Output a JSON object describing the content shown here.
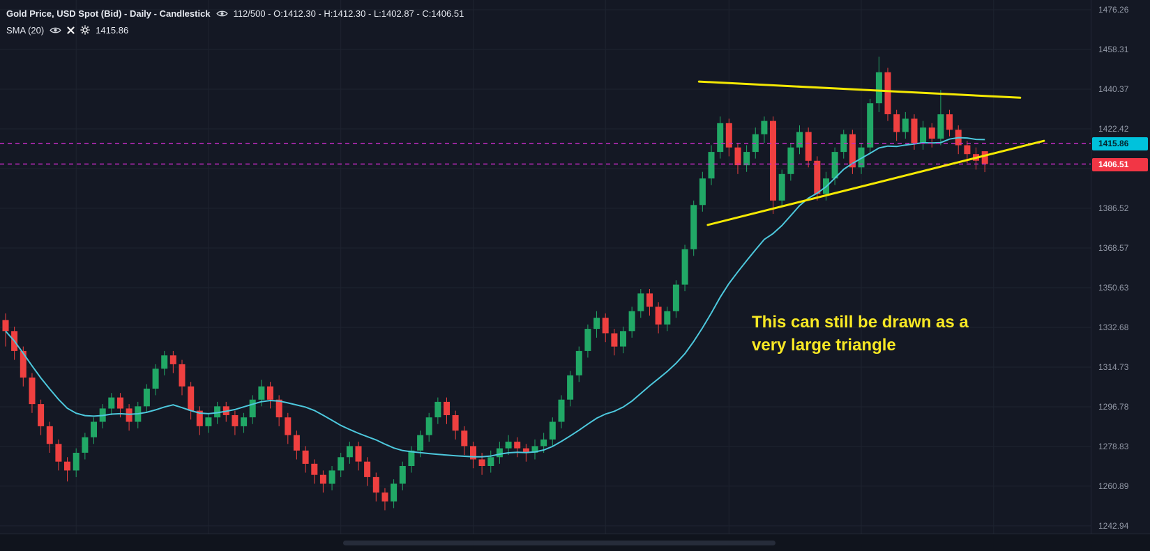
{
  "colors": {
    "background": "#141824",
    "grid": "#1e2330",
    "axis_text": "#949aa8",
    "candle_up": "#21a866",
    "candle_down": "#ef4040",
    "sma": "#4dc8dd",
    "legend_text": "#e6e9f0",
    "trendline_yellow": "#f5e903",
    "price_line_magenta": "#c42bc4"
  },
  "header": {
    "title": "Gold Price, USD Spot (Bid) - Daily - Candlestick",
    "bar_info": "112/500 - O:1412.30 - H:1412.30 - L:1402.87 - C:1406.51",
    "indicator": {
      "label": "SMA (20)",
      "value": "1415.86"
    }
  },
  "price_axis": {
    "ticks": [
      {
        "label": "1476.26",
        "value": 1476.26
      },
      {
        "label": "1458.31",
        "value": 1458.31
      },
      {
        "label": "1440.37",
        "value": 1440.37
      },
      {
        "label": "1422.42",
        "value": 1422.42
      },
      {
        "label": "1386.52",
        "value": 1386.52
      },
      {
        "label": "1368.57",
        "value": 1368.57
      },
      {
        "label": "1350.63",
        "value": 1350.63
      },
      {
        "label": "1332.68",
        "value": 1332.68
      },
      {
        "label": "1314.73",
        "value": 1314.73
      },
      {
        "label": "1296.78",
        "value": 1296.78
      },
      {
        "label": "1278.83",
        "value": 1278.83
      },
      {
        "label": "1260.89",
        "value": 1260.89
      },
      {
        "label": "1242.94",
        "value": 1242.94
      }
    ],
    "grid_values": [
      1242.94,
      1260.89,
      1278.83,
      1296.78,
      1314.73,
      1332.68,
      1350.63,
      1368.57,
      1386.52,
      1404.47,
      1422.42,
      1440.37,
      1458.31,
      1476.26
    ],
    "tags": [
      {
        "label": "1415.86",
        "price": 1415.86,
        "bg": "#00c2dc",
        "fg": "#03222a"
      },
      {
        "label": "1406.51",
        "price": 1406.51,
        "bg": "#f23645",
        "fg": "#ffffff"
      }
    ]
  },
  "annotation": {
    "lines": [
      "This can still be drawn as a",
      "very large triangle"
    ],
    "color": "#f8e824"
  },
  "chart_data": {
    "type": "candlestick",
    "title": "Gold Price, USD Spot (Bid) - Daily - Candlestick",
    "visible_bars": "112/500",
    "last_ohlc": {
      "open": 1412.3,
      "high": 1412.3,
      "low": 1402.87,
      "close": 1406.51
    },
    "ylim": [
      1239.46,
      1480.67
    ],
    "sma_period": 20,
    "sma_value": 1415.86,
    "vgrid_indices": [
      8,
      23,
      38,
      53,
      68,
      82,
      97,
      112
    ],
    "price_lines": [
      {
        "name": "sma-price-line",
        "price": 1415.86,
        "color": "#c42bc4",
        "style": "dashed"
      },
      {
        "name": "last-price-line",
        "price": 1406.51,
        "color": "#c42bc4",
        "style": "dashed"
      }
    ],
    "trend_lines": [
      {
        "name": "upper-triangle-trendline",
        "i1": 78.6,
        "p1": 1443.8,
        "i2": 115.0,
        "p2": 1436.5,
        "color": "#f5e903"
      },
      {
        "name": "lower-triangle-trendline",
        "i1": 79.6,
        "p1": 1379.0,
        "i2": 117.7,
        "p2": 1417.0,
        "color": "#f5e903"
      }
    ],
    "candles": [
      [
        1336,
        1339,
        1324,
        1331
      ],
      [
        1331,
        1333,
        1318,
        1322
      ],
      [
        1322,
        1324,
        1306,
        1310
      ],
      [
        1310,
        1312,
        1294,
        1298
      ],
      [
        1298,
        1300,
        1284,
        1288
      ],
      [
        1288,
        1290,
        1276,
        1280
      ],
      [
        1280,
        1282,
        1268,
        1272
      ],
      [
        1272,
        1274,
        1263,
        1268
      ],
      [
        1268,
        1278,
        1265,
        1276
      ],
      [
        1276,
        1285,
        1273,
        1283
      ],
      [
        1283,
        1292,
        1280,
        1290
      ],
      [
        1290,
        1298,
        1287,
        1296
      ],
      [
        1296,
        1303,
        1293,
        1301
      ],
      [
        1301,
        1303,
        1292,
        1296
      ],
      [
        1296,
        1298,
        1286,
        1290
      ],
      [
        1290,
        1299,
        1287,
        1297
      ],
      [
        1297,
        1307,
        1294,
        1305
      ],
      [
        1305,
        1316,
        1302,
        1314
      ],
      [
        1314,
        1322,
        1311,
        1320
      ],
      [
        1320,
        1322,
        1312,
        1316
      ],
      [
        1316,
        1318,
        1302,
        1306
      ],
      [
        1306,
        1308,
        1291,
        1295
      ],
      [
        1295,
        1297,
        1284,
        1288
      ],
      [
        1288,
        1294,
        1285,
        1292
      ],
      [
        1292,
        1299,
        1289,
        1297
      ],
      [
        1297,
        1299,
        1290,
        1293
      ],
      [
        1293,
        1295,
        1284,
        1288
      ],
      [
        1288,
        1294,
        1285,
        1292
      ],
      [
        1292,
        1302,
        1289,
        1300
      ],
      [
        1300,
        1309,
        1297,
        1306
      ],
      [
        1306,
        1308,
        1296,
        1300
      ],
      [
        1300,
        1302,
        1288,
        1292
      ],
      [
        1292,
        1294,
        1280,
        1284
      ],
      [
        1284,
        1286,
        1273,
        1277
      ],
      [
        1277,
        1279,
        1267,
        1271
      ],
      [
        1271,
        1273,
        1262,
        1266
      ],
      [
        1266,
        1268,
        1258,
        1262
      ],
      [
        1262,
        1270,
        1259,
        1268
      ],
      [
        1268,
        1276,
        1265,
        1274
      ],
      [
        1274,
        1281,
        1271,
        1279
      ],
      [
        1279,
        1281,
        1268,
        1272
      ],
      [
        1272,
        1274,
        1261,
        1265
      ],
      [
        1265,
        1267,
        1254,
        1258
      ],
      [
        1258,
        1260,
        1250,
        1254
      ],
      [
        1254,
        1264,
        1251,
        1262
      ],
      [
        1262,
        1272,
        1259,
        1270
      ],
      [
        1270,
        1279,
        1267,
        1277
      ],
      [
        1277,
        1286,
        1274,
        1284
      ],
      [
        1284,
        1294,
        1281,
        1292
      ],
      [
        1292,
        1301,
        1289,
        1299
      ],
      [
        1299,
        1301,
        1289,
        1293
      ],
      [
        1293,
        1295,
        1282,
        1286
      ],
      [
        1286,
        1288,
        1275,
        1279
      ],
      [
        1279,
        1281,
        1269,
        1273
      ],
      [
        1273,
        1276,
        1266,
        1270
      ],
      [
        1270,
        1277,
        1267,
        1274
      ],
      [
        1274,
        1281,
        1271,
        1278
      ],
      [
        1278,
        1284,
        1275,
        1281
      ],
      [
        1281,
        1283,
        1274,
        1278
      ],
      [
        1278,
        1280,
        1272,
        1276
      ],
      [
        1276,
        1282,
        1273,
        1279
      ],
      [
        1279,
        1285,
        1276,
        1282
      ],
      [
        1282,
        1292,
        1279,
        1290
      ],
      [
        1290,
        1302,
        1287,
        1300
      ],
      [
        1300,
        1313,
        1297,
        1311
      ],
      [
        1311,
        1324,
        1308,
        1322
      ],
      [
        1322,
        1334,
        1319,
        1332
      ],
      [
        1332,
        1340,
        1328,
        1337
      ],
      [
        1337,
        1339,
        1326,
        1330
      ],
      [
        1330,
        1332,
        1320,
        1324
      ],
      [
        1324,
        1333,
        1321,
        1331
      ],
      [
        1331,
        1342,
        1328,
        1340
      ],
      [
        1340,
        1350,
        1337,
        1348
      ],
      [
        1348,
        1350,
        1338,
        1342
      ],
      [
        1342,
        1344,
        1330,
        1334
      ],
      [
        1334,
        1342,
        1331,
        1340
      ],
      [
        1340,
        1354,
        1337,
        1352
      ],
      [
        1352,
        1370,
        1349,
        1368
      ],
      [
        1368,
        1390,
        1365,
        1388
      ],
      [
        1388,
        1403,
        1385,
        1400
      ],
      [
        1400,
        1415,
        1397,
        1412
      ],
      [
        1412,
        1428,
        1409,
        1425
      ],
      [
        1425,
        1427,
        1410,
        1414
      ],
      [
        1414,
        1416,
        1402,
        1406
      ],
      [
        1406,
        1415,
        1403,
        1412
      ],
      [
        1412,
        1423,
        1409,
        1420
      ],
      [
        1420,
        1428,
        1416,
        1426
      ],
      [
        1426,
        1428,
        1384,
        1390
      ],
      [
        1390,
        1404,
        1387,
        1402
      ],
      [
        1402,
        1416,
        1399,
        1414
      ],
      [
        1414,
        1424,
        1411,
        1421
      ],
      [
        1421,
        1423,
        1405,
        1408
      ],
      [
        1408,
        1410,
        1390,
        1393
      ],
      [
        1393,
        1403,
        1390,
        1400
      ],
      [
        1400,
        1414,
        1397,
        1412
      ],
      [
        1412,
        1422,
        1409,
        1420
      ],
      [
        1420,
        1422,
        1402,
        1405
      ],
      [
        1405,
        1416,
        1402,
        1414
      ],
      [
        1414,
        1436,
        1411,
        1434
      ],
      [
        1434,
        1455,
        1430,
        1448
      ],
      [
        1448,
        1450,
        1426,
        1429
      ],
      [
        1429,
        1431,
        1417,
        1421
      ],
      [
        1421,
        1430,
        1418,
        1427
      ],
      [
        1427,
        1429,
        1413,
        1416
      ],
      [
        1416,
        1426,
        1413,
        1423
      ],
      [
        1423,
        1425,
        1414,
        1418
      ],
      [
        1418,
        1440,
        1415,
        1429
      ],
      [
        1429,
        1431,
        1419,
        1422
      ],
      [
        1422,
        1424,
        1411,
        1415
      ],
      [
        1415,
        1417,
        1407,
        1411
      ],
      [
        1411,
        1414,
        1404,
        1408
      ],
      [
        1412.3,
        1412.3,
        1402.87,
        1406.51
      ]
    ]
  }
}
